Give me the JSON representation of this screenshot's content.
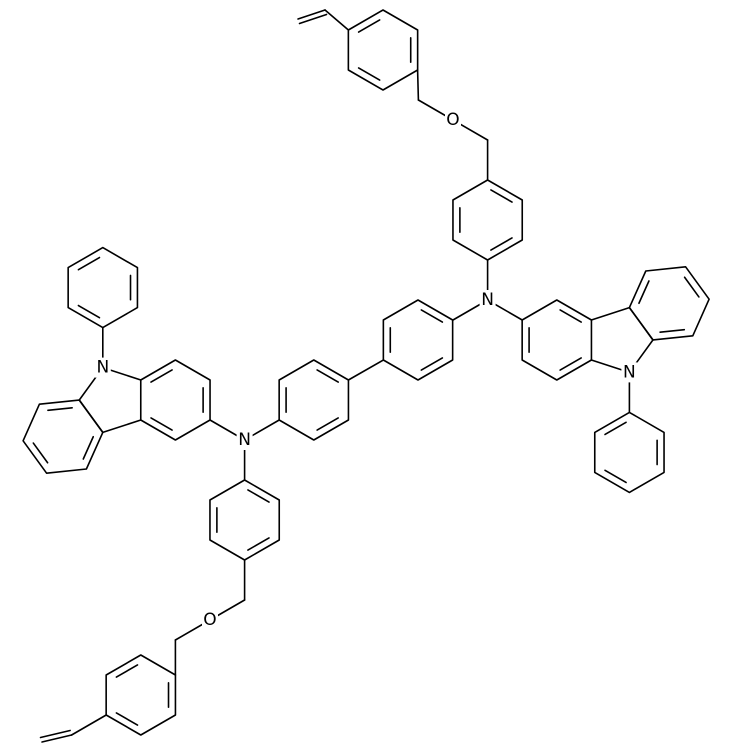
{
  "atoms": [
    {
      "label": "N"
    },
    {
      "label": "N"
    },
    {
      "label": "N"
    },
    {
      "label": "N"
    },
    {
      "label": "O"
    },
    {
      "label": "O"
    }
  ]
}
